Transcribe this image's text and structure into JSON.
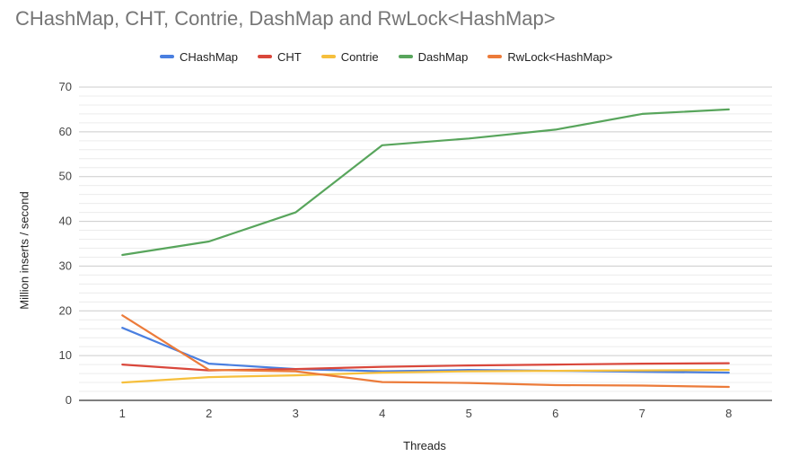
{
  "chart_data": {
    "type": "line",
    "title": "CHashMap, CHT, Contrie, DashMap and RwLock<HashMap>",
    "xlabel": "Threads",
    "ylabel": "Million inserts / second",
    "x": [
      1,
      2,
      3,
      4,
      5,
      6,
      7,
      8
    ],
    "ylim": [
      0,
      70
    ],
    "yticks": [
      0,
      10,
      20,
      30,
      40,
      50,
      60,
      70
    ],
    "minor_grid_step": 2,
    "grid": true,
    "legend_position": "top",
    "series": [
      {
        "name": "CHashMap",
        "color": "#4a7fe0",
        "values": [
          16.2,
          8.2,
          7.0,
          6.5,
          6.8,
          6.6,
          6.4,
          6.2
        ]
      },
      {
        "name": "CHT",
        "color": "#d9473b",
        "values": [
          8.0,
          6.7,
          7.0,
          7.5,
          7.8,
          8.0,
          8.2,
          8.3
        ]
      },
      {
        "name": "Contrie",
        "color": "#f6bf3c",
        "values": [
          4.0,
          5.2,
          5.6,
          6.2,
          6.5,
          6.6,
          6.7,
          6.8
        ]
      },
      {
        "name": "DashMap",
        "color": "#58a55c",
        "values": [
          32.5,
          35.5,
          42.0,
          57.0,
          58.5,
          60.5,
          64.0,
          65.0
        ]
      },
      {
        "name": "RwLock<HashMap>",
        "color": "#ec7b3a",
        "values": [
          19.0,
          6.8,
          6.5,
          4.1,
          3.9,
          3.4,
          3.3,
          3.0
        ]
      }
    ]
  }
}
